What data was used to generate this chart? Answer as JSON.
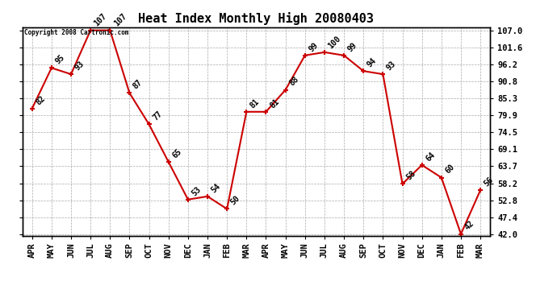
{
  "months": [
    "APR",
    "MAY",
    "JUN",
    "JUL",
    "AUG",
    "SEP",
    "OCT",
    "NOV",
    "DEC",
    "JAN",
    "FEB",
    "MAR",
    "APR",
    "MAY",
    "JUN",
    "JUL",
    "AUG",
    "SEP",
    "OCT",
    "NOV",
    "DEC",
    "JAN",
    "FEB",
    "MAR"
  ],
  "values": [
    82,
    95,
    93,
    107,
    107,
    87,
    77,
    65,
    53,
    54,
    50,
    81,
    81,
    88,
    99,
    100,
    99,
    94,
    93,
    58,
    64,
    60,
    42,
    56
  ],
  "yticks": [
    42.0,
    47.4,
    52.8,
    58.2,
    63.7,
    69.1,
    74.5,
    79.9,
    85.3,
    90.8,
    96.2,
    101.6,
    107.0
  ],
  "title": "Heat Index Monthly High 20080403",
  "copyright_text": "Copyright 2008 Cartronic.com",
  "line_color": "#cc0000",
  "marker_color": "#cc0000",
  "bg_color": "#ffffff",
  "grid_color": "#aaaaaa",
  "title_fontsize": 11,
  "label_fontsize": 7,
  "tick_fontsize": 7.5,
  "ymin": 42.0,
  "ymax": 107.0
}
